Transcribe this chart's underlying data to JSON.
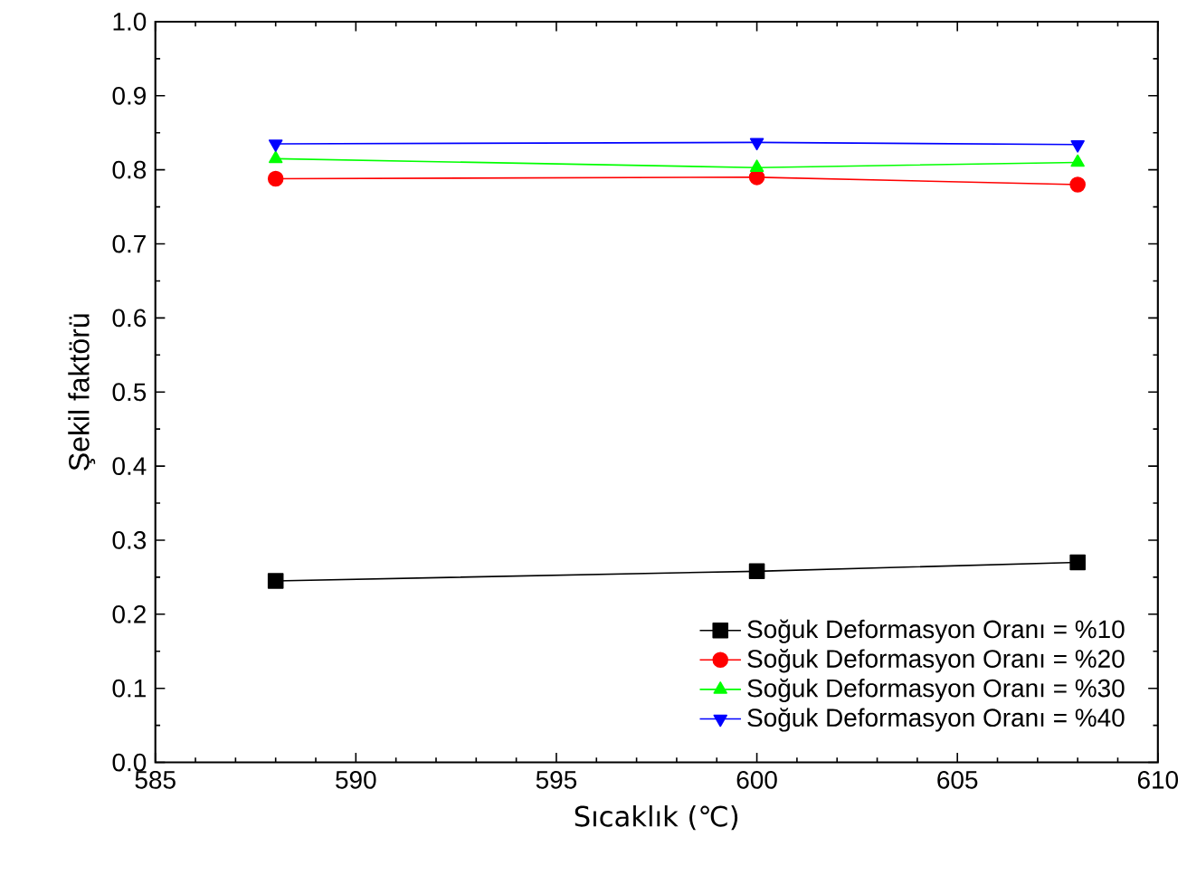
{
  "chart_data": {
    "type": "line",
    "xlabel": "Sıcaklık (℃)",
    "ylabel": "Şekil faktörü",
    "x": [
      588,
      600,
      608
    ],
    "series": [
      {
        "name": "Soğuk Deformasyon Oranı = %10",
        "color": "#000000",
        "marker": "square",
        "values": [
          0.245,
          0.258,
          0.27
        ]
      },
      {
        "name": "Soğuk Deformasyon Oranı = %20",
        "color": "#ff0000",
        "marker": "circle",
        "values": [
          0.788,
          0.79,
          0.78
        ]
      },
      {
        "name": "Soğuk Deformasyon Oranı = %30",
        "color": "#00ff00",
        "marker": "triangle",
        "values": [
          0.815,
          0.803,
          0.81
        ]
      },
      {
        "name": "Soğuk Deformasyon Oranı = %40",
        "color": "#0000ff",
        "marker": "triangle-down",
        "values": [
          0.835,
          0.837,
          0.834
        ]
      }
    ],
    "xlim": [
      585,
      610
    ],
    "ylim": [
      0,
      1
    ],
    "xticks": [
      585,
      590,
      595,
      600,
      605,
      610
    ],
    "yticks": [
      {
        "value": 0,
        "label": "0.0"
      },
      0.1,
      0.2,
      0.3,
      0.4,
      0.5,
      0.6,
      0.7,
      0.8,
      0.9,
      {
        "value": 1,
        "label": "1.0"
      }
    ],
    "grid": false,
    "legend": "bottom right",
    "line_style": "solid"
  }
}
